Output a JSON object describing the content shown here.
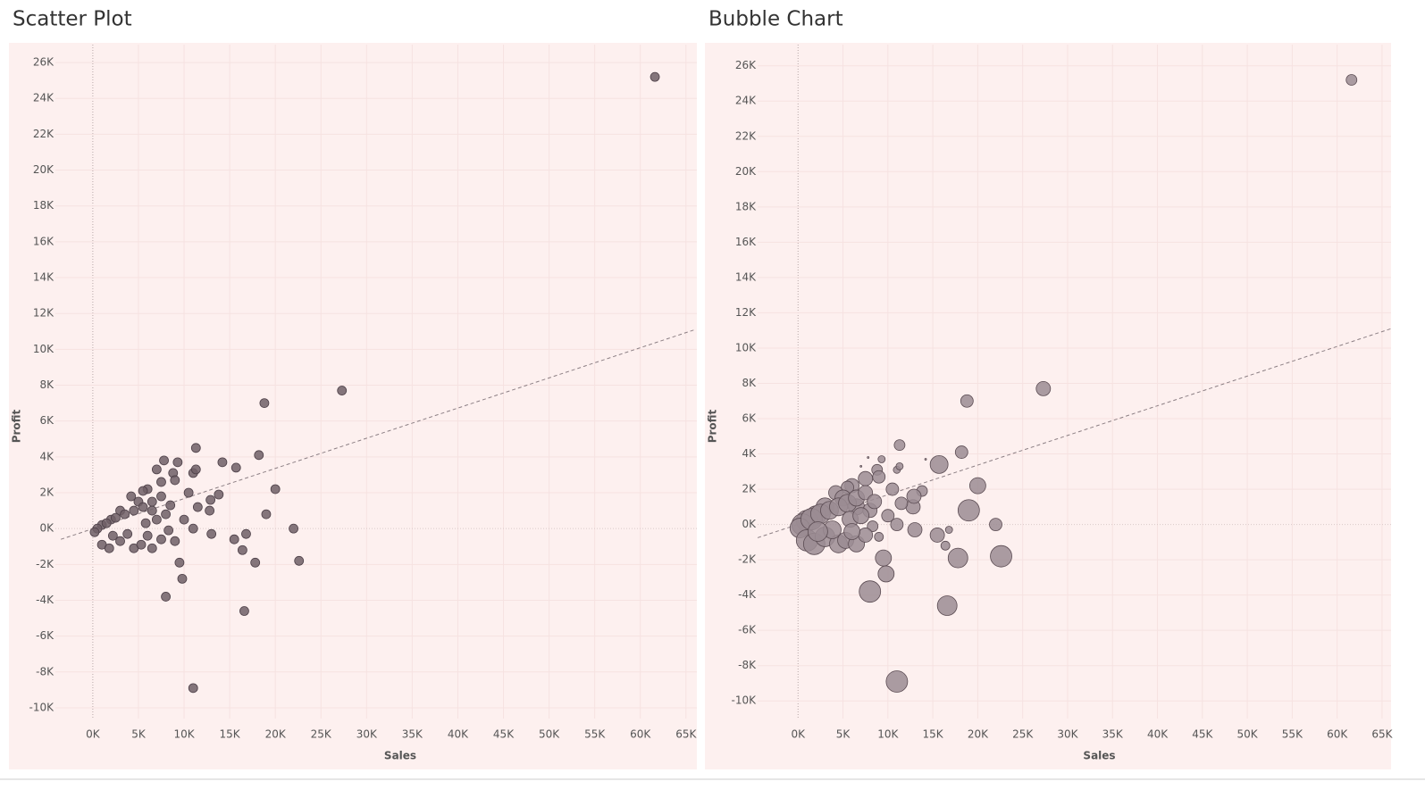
{
  "chart_data": [
    {
      "type": "scatter",
      "title": "Scatter Plot",
      "x_label": "Sales",
      "y_label": "Profit",
      "color": "#6e5f66",
      "x": [
        61600,
        27300,
        18800,
        11300,
        18200,
        14200,
        15700,
        20000,
        22000,
        22600,
        19000,
        16800,
        15500,
        16400,
        17800,
        16600,
        11000,
        8000,
        9800,
        9500,
        9000,
        8300,
        13000,
        11000,
        12800,
        13800,
        12900,
        11500,
        10500,
        11000,
        11300,
        9300,
        7800,
        7000,
        8800,
        7500,
        9000,
        6000,
        5500,
        4200,
        5000,
        6500,
        3000,
        2000,
        1000,
        500,
        200,
        1500,
        2500,
        3500,
        4500,
        5500,
        6500,
        7500,
        1000,
        1800,
        3000,
        4500,
        5300,
        6500,
        7500,
        3800,
        2200,
        5800,
        8000,
        7000,
        6000,
        10000,
        8500
      ],
      "y": [
        25200,
        7700,
        7000,
        4500,
        4100,
        3700,
        3400,
        2200,
        0,
        -1800,
        800,
        -300,
        -600,
        -1200,
        -1900,
        -4600,
        -8900,
        -3800,
        -2800,
        -1900,
        -700,
        -100,
        -300,
        0,
        1000,
        1900,
        1600,
        1200,
        2000,
        3100,
        3300,
        3700,
        3800,
        3300,
        3100,
        2600,
        2700,
        2200,
        2100,
        1800,
        1500,
        1000,
        1000,
        500,
        200,
        0,
        -200,
        300,
        600,
        800,
        1000,
        1200,
        1500,
        1800,
        -900,
        -1100,
        -700,
        -1100,
        -900,
        -1100,
        -600,
        -300,
        -400,
        300,
        800,
        500,
        -400,
        500,
        1300
      ],
      "trendline": {
        "x": [
          -3500,
          66000
        ],
        "y": [
          -600,
          11100
        ]
      },
      "xlim": [
        -4100,
        66000
      ],
      "ylim": [
        -10600,
        27000
      ],
      "xticks": [
        {
          "value": 0,
          "label": "0K"
        },
        {
          "value": 5000,
          "label": "5K"
        },
        {
          "value": 10000,
          "label": "10K"
        },
        {
          "value": 15000,
          "label": "15K"
        },
        {
          "value": 20000,
          "label": "20K"
        },
        {
          "value": 25000,
          "label": "25K"
        },
        {
          "value": 30000,
          "label": "30K"
        },
        {
          "value": 35000,
          "label": "35K"
        },
        {
          "value": 40000,
          "label": "40K"
        },
        {
          "value": 45000,
          "label": "45K"
        },
        {
          "value": 50000,
          "label": "50K"
        },
        {
          "value": 55000,
          "label": "55K"
        },
        {
          "value": 60000,
          "label": "60K"
        },
        {
          "value": 65000,
          "label": "65K"
        }
      ],
      "yticks": [
        {
          "value": 26000,
          "label": "26K"
        },
        {
          "value": 24000,
          "label": "24K"
        },
        {
          "value": 22000,
          "label": "22K"
        },
        {
          "value": 20000,
          "label": "20K"
        },
        {
          "value": 18000,
          "label": "18K"
        },
        {
          "value": 16000,
          "label": "16K"
        },
        {
          "value": 14000,
          "label": "14K"
        },
        {
          "value": 12000,
          "label": "12K"
        },
        {
          "value": 10000,
          "label": "10K"
        },
        {
          "value": 8000,
          "label": "8K"
        },
        {
          "value": 6000,
          "label": "6K"
        },
        {
          "value": 4000,
          "label": "4K"
        },
        {
          "value": 2000,
          "label": "2K"
        },
        {
          "value": 0,
          "label": "0K"
        },
        {
          "value": -2000,
          "label": "-2K"
        },
        {
          "value": -4000,
          "label": "-4K"
        },
        {
          "value": -6000,
          "label": "-6K"
        },
        {
          "value": -8000,
          "label": "-8K"
        },
        {
          "value": -10000,
          "label": "-10K"
        }
      ],
      "grid": true
    },
    {
      "type": "bubble",
      "title": "Bubble Chart",
      "x_label": "Sales",
      "y_label": "Profit",
      "color": "#9b8c93",
      "x": [
        61600,
        27300,
        18800,
        11300,
        18200,
        14200,
        15700,
        20000,
        22000,
        22600,
        19000,
        16800,
        15500,
        16400,
        17800,
        16600,
        11000,
        8000,
        9800,
        9500,
        9000,
        8300,
        13000,
        11000,
        12800,
        13800,
        12900,
        11500,
        10500,
        11000,
        11300,
        9300,
        7800,
        7000,
        8800,
        7500,
        9000,
        6000,
        5500,
        4200,
        5000,
        6500,
        3000,
        2000,
        1000,
        500,
        200,
        1500,
        2500,
        3500,
        4500,
        5500,
        6500,
        7500,
        1000,
        1800,
        3000,
        4500,
        5300,
        6500,
        7500,
        3800,
        2200,
        5800,
        8000,
        7000,
        6000,
        10000,
        8500
      ],
      "y": [
        25200,
        7700,
        7000,
        4500,
        4100,
        3700,
        3400,
        2200,
        0,
        -1800,
        800,
        -300,
        -600,
        -1200,
        -1900,
        -4600,
        -8900,
        -3800,
        -2800,
        -1900,
        -700,
        -100,
        -300,
        0,
        1000,
        1900,
        1600,
        1200,
        2000,
        3100,
        3300,
        3700,
        3800,
        3300,
        3100,
        2600,
        2700,
        2200,
        2100,
        1800,
        1500,
        1000,
        1000,
        500,
        200,
        0,
        -200,
        300,
        600,
        800,
        1000,
        1200,
        1500,
        1800,
        -900,
        -1100,
        -700,
        -1100,
        -900,
        -1100,
        -600,
        -300,
        -400,
        300,
        800,
        500,
        -400,
        500,
        1300
      ],
      "sizes": [
        36,
        64,
        49,
        36,
        49,
        1,
        100,
        81,
        49,
        144,
        144,
        16,
        64,
        25,
        121,
        121,
        144,
        144,
        81,
        81,
        25,
        36,
        64,
        49,
        64,
        36,
        64,
        49,
        49,
        16,
        16,
        16,
        1,
        1,
        36,
        64,
        49,
        64,
        49,
        64,
        81,
        81,
        100,
        121,
        144,
        144,
        121,
        144,
        121,
        100,
        100,
        100,
        81,
        64,
        144,
        144,
        121,
        100,
        81,
        81,
        64,
        100,
        121,
        81,
        64,
        81,
        81,
        49,
        64
      ],
      "trendline": {
        "x": [
          -4500,
          66000
        ],
        "y": [
          -750,
          11100
        ]
      },
      "xlim": [
        -4500,
        66000
      ],
      "ylim": [
        -11000,
        27200
      ],
      "xticks": [
        {
          "value": 0,
          "label": "0K"
        },
        {
          "value": 5000,
          "label": "5K"
        },
        {
          "value": 10000,
          "label": "10K"
        },
        {
          "value": 15000,
          "label": "15K"
        },
        {
          "value": 20000,
          "label": "20K"
        },
        {
          "value": 25000,
          "label": "25K"
        },
        {
          "value": 30000,
          "label": "30K"
        },
        {
          "value": 35000,
          "label": "35K"
        },
        {
          "value": 40000,
          "label": "40K"
        },
        {
          "value": 45000,
          "label": "45K"
        },
        {
          "value": 50000,
          "label": "50K"
        },
        {
          "value": 55000,
          "label": "55K"
        },
        {
          "value": 60000,
          "label": "60K"
        },
        {
          "value": 65000,
          "label": "65K"
        }
      ],
      "yticks": [
        {
          "value": 26000,
          "label": "26K"
        },
        {
          "value": 24000,
          "label": "24K"
        },
        {
          "value": 22000,
          "label": "22K"
        },
        {
          "value": 20000,
          "label": "20K"
        },
        {
          "value": 18000,
          "label": "18K"
        },
        {
          "value": 16000,
          "label": "16K"
        },
        {
          "value": 14000,
          "label": "14K"
        },
        {
          "value": 12000,
          "label": "12K"
        },
        {
          "value": 10000,
          "label": "10K"
        },
        {
          "value": 8000,
          "label": "8K"
        },
        {
          "value": 6000,
          "label": "6K"
        },
        {
          "value": 4000,
          "label": "4K"
        },
        {
          "value": 2000,
          "label": "2K"
        },
        {
          "value": 0,
          "label": "0K"
        },
        {
          "value": -2000,
          "label": "-2K"
        },
        {
          "value": -4000,
          "label": "-4K"
        },
        {
          "value": -6000,
          "label": "-6K"
        },
        {
          "value": -8000,
          "label": "-8K"
        },
        {
          "value": -10000,
          "label": "-10K"
        }
      ],
      "grid": true
    }
  ]
}
